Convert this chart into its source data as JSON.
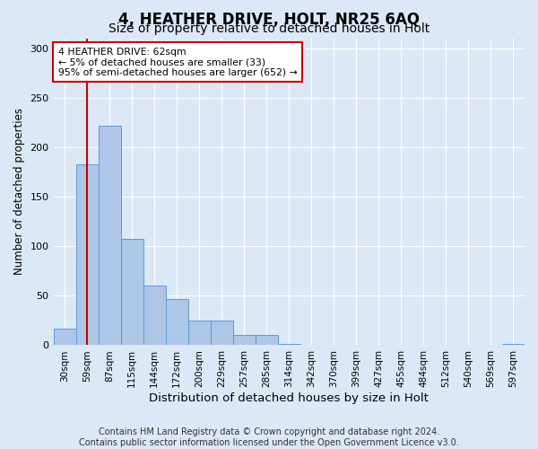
{
  "title1": "4, HEATHER DRIVE, HOLT, NR25 6AQ",
  "title2": "Size of property relative to detached houses in Holt",
  "xlabel": "Distribution of detached houses by size in Holt",
  "ylabel": "Number of detached properties",
  "bar_values": [
    17,
    183,
    222,
    107,
    60,
    47,
    25,
    25,
    10,
    10,
    1,
    0,
    0,
    0,
    0,
    0,
    0,
    0,
    0,
    0,
    1
  ],
  "bin_labels": [
    "30sqm",
    "59sqm",
    "87sqm",
    "115sqm",
    "144sqm",
    "172sqm",
    "200sqm",
    "229sqm",
    "257sqm",
    "285sqm",
    "314sqm",
    "342sqm",
    "370sqm",
    "399sqm",
    "427sqm",
    "455sqm",
    "484sqm",
    "512sqm",
    "540sqm",
    "569sqm",
    "597sqm"
  ],
  "bar_color": "#aec6e8",
  "bar_edge_color": "#5b9bd5",
  "ylim": [
    0,
    310
  ],
  "yticks": [
    0,
    50,
    100,
    150,
    200,
    250,
    300
  ],
  "vline_x": 1.0,
  "vline_color": "#cc0000",
  "annotation_text": "4 HEATHER DRIVE: 62sqm\n← 5% of detached houses are smaller (33)\n95% of semi-detached houses are larger (652) →",
  "annotation_box_color": "#ffffff",
  "annotation_box_edge": "#cc0000",
  "footer_text": "Contains HM Land Registry data © Crown copyright and database right 2024.\nContains public sector information licensed under the Open Government Licence v3.0.",
  "background_color": "#dce8f5",
  "plot_bg_color": "#dce8f5",
  "title1_fontsize": 12,
  "title2_fontsize": 10,
  "xlabel_fontsize": 9.5,
  "ylabel_fontsize": 8.5,
  "footer_fontsize": 7,
  "grid_color": "#ffffff",
  "n_bins": 21
}
